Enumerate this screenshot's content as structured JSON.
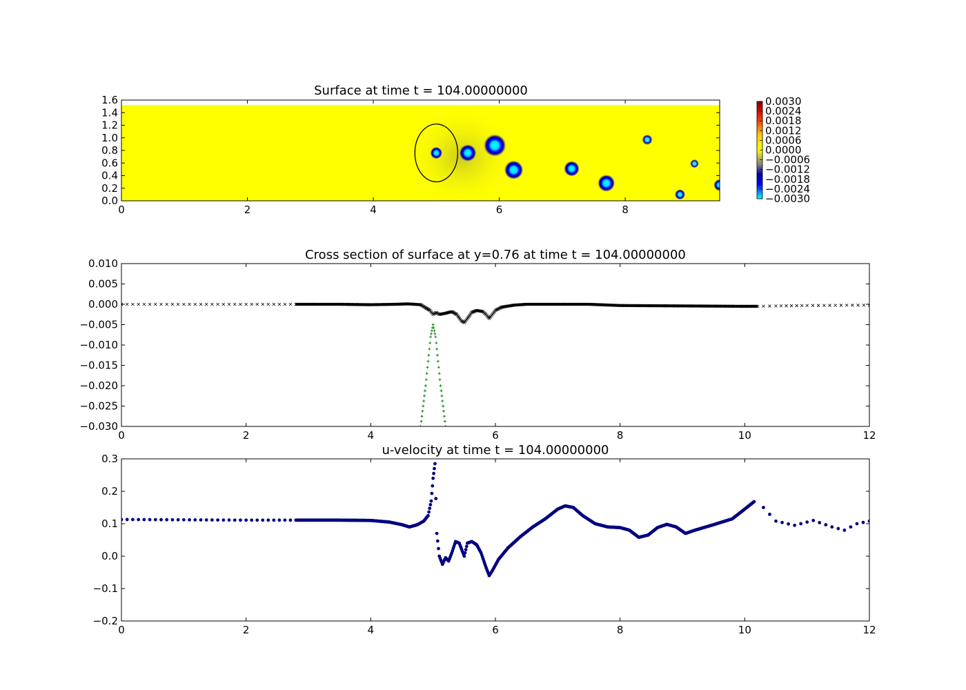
{
  "chart_data": [
    {
      "type": "heatmap",
      "title": "Surface at time t =   104.00000000",
      "xlim": [
        0,
        9.5
      ],
      "ylim": [
        0,
        1.6
      ],
      "x_ticks": [
        "0",
        "2",
        "4",
        "6",
        "8"
      ],
      "y_ticks": [
        "0.0",
        "0.2",
        "0.4",
        "0.6",
        "0.8",
        "1.0",
        "1.2",
        "1.4",
        "1.6"
      ],
      "colormap": "jet-like (cyan to blue to gray to yellow to red)",
      "clim": [
        -0.003,
        0.003
      ],
      "colorbar_ticks": [
        "0.0030",
        "0.0024",
        "0.0018",
        "0.0012",
        "0.0006",
        "0.0000",
        "−0.0006",
        "−0.0012",
        "−0.0018",
        "−0.0024",
        "−0.0030"
      ],
      "domain_top_y": 1.52,
      "background_color": "#ffff00",
      "circle": {
        "cx": 5.0,
        "cy": 0.76,
        "r": 0.34
      },
      "depressions": [
        {
          "x": 5.0,
          "y": 0.76,
          "r": 0.07,
          "depth": -0.003
        },
        {
          "x": 5.5,
          "y": 0.76,
          "r": 0.1,
          "depth": -0.003
        },
        {
          "x": 5.93,
          "y": 0.88,
          "r": 0.13,
          "depth": -0.003
        },
        {
          "x": 6.23,
          "y": 0.49,
          "r": 0.11,
          "depth": -0.003
        },
        {
          "x": 7.15,
          "y": 0.51,
          "r": 0.09,
          "depth": -0.003
        },
        {
          "x": 7.7,
          "y": 0.28,
          "r": 0.1,
          "depth": -0.003
        },
        {
          "x": 8.35,
          "y": 0.97,
          "r": 0.06,
          "depth": -0.002
        },
        {
          "x": 9.1,
          "y": 0.59,
          "r": 0.05,
          "depth": -0.0018
        },
        {
          "x": 8.87,
          "y": 0.1,
          "r": 0.06,
          "depth": -0.0025
        },
        {
          "x": 9.5,
          "y": 0.25,
          "r": 0.07,
          "depth": -0.0025
        }
      ]
    },
    {
      "type": "scatter",
      "title": "Cross section of surface at y=0.76 at time t =   104.00000000",
      "xlim": [
        0,
        12
      ],
      "ylim": [
        -0.03,
        0.01
      ],
      "x_ticks": [
        "0",
        "2",
        "4",
        "6",
        "8",
        "10",
        "12"
      ],
      "y_ticks": [
        "0.010",
        "0.005",
        "0.000",
        "−0.005",
        "−0.010",
        "−0.015",
        "−0.020",
        "−0.025",
        "−0.030"
      ],
      "series": [
        {
          "marker": "x",
          "color": "#000000",
          "points": [
            [
              0,
              0
            ],
            [
              1,
              0
            ],
            [
              2,
              0
            ],
            [
              2.8,
              0
            ],
            [
              3.5,
              0
            ],
            [
              4,
              -0.0001
            ],
            [
              4.4,
              0
            ],
            [
              4.6,
              0.0001
            ],
            [
              4.8,
              -0.0001
            ],
            [
              4.95,
              -0.0015
            ],
            [
              5.0,
              -0.0025
            ],
            [
              5.05,
              -0.002
            ],
            [
              5.1,
              -0.0025
            ],
            [
              5.2,
              -0.0022
            ],
            [
              5.3,
              -0.0018
            ],
            [
              5.38,
              -0.0025
            ],
            [
              5.45,
              -0.004
            ],
            [
              5.5,
              -0.0045
            ],
            [
              5.55,
              -0.0035
            ],
            [
              5.62,
              -0.002
            ],
            [
              5.7,
              -0.0015
            ],
            [
              5.8,
              -0.0018
            ],
            [
              5.85,
              -0.0025
            ],
            [
              5.9,
              -0.0035
            ],
            [
              5.95,
              -0.0025
            ],
            [
              6.0,
              -0.0015
            ],
            [
              6.1,
              -0.0007
            ],
            [
              6.3,
              -0.0002
            ],
            [
              6.5,
              0
            ],
            [
              7,
              0
            ],
            [
              7.5,
              0
            ],
            [
              8,
              -0.0003
            ],
            [
              9,
              -0.0004
            ],
            [
              10,
              -0.0005
            ],
            [
              10.2,
              -0.0005
            ],
            [
              10.5,
              -0.0004
            ],
            [
              11,
              -0.0003
            ],
            [
              12,
              -0.0002
            ]
          ]
        },
        {
          "marker": "+",
          "color": "#008000",
          "points": [
            [
              4.8,
              -0.03
            ],
            [
              4.84,
              -0.025
            ],
            [
              4.88,
              -0.02
            ],
            [
              4.92,
              -0.014
            ],
            [
              4.96,
              -0.008
            ],
            [
              5.0,
              -0.005
            ],
            [
              5.04,
              -0.008
            ],
            [
              5.08,
              -0.014
            ],
            [
              5.12,
              -0.02
            ],
            [
              5.16,
              -0.025
            ],
            [
              5.2,
              -0.03
            ]
          ]
        }
      ]
    },
    {
      "type": "scatter",
      "title": "u-velocity at time t =   104.00000000",
      "xlim": [
        0,
        12
      ],
      "ylim": [
        -0.2,
        0.3
      ],
      "x_ticks": [
        "0",
        "2",
        "4",
        "6",
        "8",
        "10",
        "12"
      ],
      "y_ticks": [
        "0.3",
        "0.2",
        "0.1",
        "0.0",
        "−0.1",
        "−0.2"
      ],
      "series": [
        {
          "marker": "o",
          "color": "#000080",
          "points": [
            [
              0,
              0.113
            ],
            [
              1,
              0.112
            ],
            [
              2,
              0.111
            ],
            [
              2.8,
              0.111
            ],
            [
              3.5,
              0.111
            ],
            [
              4.0,
              0.11
            ],
            [
              4.3,
              0.105
            ],
            [
              4.5,
              0.097
            ],
            [
              4.62,
              0.09
            ],
            [
              4.75,
              0.097
            ],
            [
              4.85,
              0.108
            ],
            [
              4.92,
              0.125
            ],
            [
              4.97,
              0.17
            ],
            [
              5.0,
              0.24
            ],
            [
              5.03,
              0.285
            ],
            [
              5.06,
              0.07
            ],
            [
              5.1,
              0.0
            ],
            [
              5.15,
              -0.025
            ],
            [
              5.2,
              -0.005
            ],
            [
              5.25,
              -0.015
            ],
            [
              5.3,
              0.01
            ],
            [
              5.36,
              0.045
            ],
            [
              5.42,
              0.04
            ],
            [
              5.5,
              0.0
            ],
            [
              5.55,
              0.04
            ],
            [
              5.62,
              0.045
            ],
            [
              5.7,
              0.035
            ],
            [
              5.77,
              0.01
            ],
            [
              5.85,
              -0.035
            ],
            [
              5.9,
              -0.06
            ],
            [
              5.95,
              -0.045
            ],
            [
              6.05,
              -0.01
            ],
            [
              6.2,
              0.025
            ],
            [
              6.4,
              0.06
            ],
            [
              6.6,
              0.09
            ],
            [
              6.8,
              0.115
            ],
            [
              7.0,
              0.145
            ],
            [
              7.12,
              0.155
            ],
            [
              7.25,
              0.15
            ],
            [
              7.4,
              0.125
            ],
            [
              7.6,
              0.1
            ],
            [
              7.8,
              0.09
            ],
            [
              8.0,
              0.088
            ],
            [
              8.15,
              0.08
            ],
            [
              8.3,
              0.058
            ],
            [
              8.45,
              0.065
            ],
            [
              8.6,
              0.088
            ],
            [
              8.75,
              0.098
            ],
            [
              8.9,
              0.09
            ],
            [
              9.05,
              0.07
            ],
            [
              9.2,
              0.08
            ],
            [
              9.5,
              0.097
            ],
            [
              9.8,
              0.115
            ],
            [
              10.0,
              0.145
            ],
            [
              10.15,
              0.168
            ],
            [
              10.3,
              0.15
            ],
            [
              10.5,
              0.108
            ],
            [
              10.8,
              0.095
            ],
            [
              11.1,
              0.11
            ],
            [
              11.4,
              0.09
            ],
            [
              11.6,
              0.08
            ],
            [
              11.8,
              0.1
            ],
            [
              12.0,
              0.108
            ]
          ]
        }
      ]
    }
  ]
}
